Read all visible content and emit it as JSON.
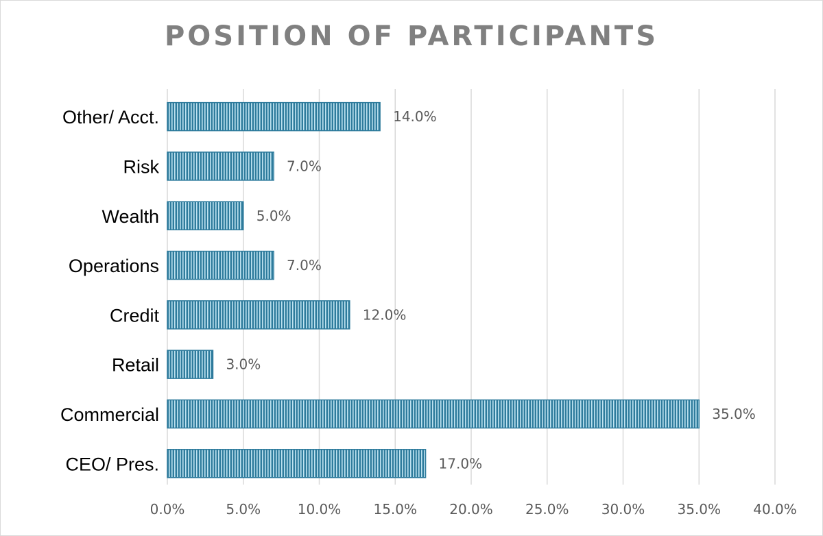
{
  "chart_data": {
    "type": "bar",
    "orientation": "horizontal",
    "title": "POSITION OF PARTICIPANTS",
    "categories": [
      "Other/ Acct.",
      "Risk",
      "Wealth",
      "Operations",
      "Credit",
      "Retail",
      "Commercial",
      "CEO/ Pres."
    ],
    "values": [
      14.0,
      7.0,
      5.0,
      7.0,
      12.0,
      3.0,
      35.0,
      17.0
    ],
    "value_labels": [
      "14.0%",
      "7.0%",
      "5.0%",
      "7.0%",
      "12.0%",
      "3.0%",
      "35.0%",
      "17.0%"
    ],
    "xlim": [
      0,
      40
    ],
    "x_ticks": [
      0,
      5,
      10,
      15,
      20,
      25,
      30,
      35,
      40
    ],
    "x_tick_labels": [
      "0.0%",
      "5.0%",
      "10.0%",
      "15.0%",
      "20.0%",
      "25.0%",
      "30.0%",
      "35.0%",
      "40.0%"
    ],
    "grid": "vertical",
    "legend": "none",
    "bar_color": "#2e7b9c",
    "bar_light_color": "#bfe3f1"
  }
}
